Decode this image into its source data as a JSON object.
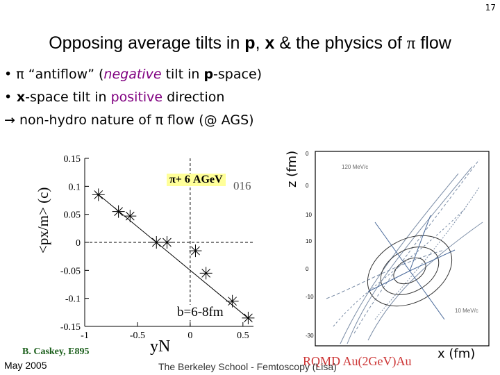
{
  "page_number": "17",
  "title": {
    "part1": "Opposing average tilts in ",
    "p": "p",
    "part2": ", ",
    "x": "x",
    "part3": " & the physics of ",
    "pi": "π",
    "part4": " flow"
  },
  "bullets": [
    {
      "marker": "•",
      "pre": " π “antiflow” (",
      "emph": "negative",
      "mid": " tilt in ",
      "bold": "p",
      "post": "-space)"
    },
    {
      "marker": "•",
      "bold": " x",
      "mid": "-space tilt in ",
      "emph": "positive",
      "post": " direction"
    },
    {
      "arrow": "→",
      "text": " non-hydro nature of π flow (@ AGS)"
    }
  ],
  "plot_left": {
    "ylabel": "<px/m> (c)",
    "xlabel": "yN",
    "tag": "π+ 6 AGeV",
    "tag_tail": "016",
    "annotation": "b=6-8fm",
    "ytick_labels": [
      "0.15",
      "0.1",
      "0.05",
      "0",
      "-0.05",
      "-0.1",
      "-0.15"
    ],
    "xtick_labels": [
      "-1",
      "-0.5",
      "0",
      "0.5"
    ]
  },
  "plot_right": {
    "zlabel": "z (fm)",
    "xlabel": "x (fm)",
    "momentum_label_1": "120 MeV/c",
    "momentum_label_2": "10 MeV/c"
  },
  "footer": {
    "date": "May 2005",
    "center": "The Berkeley School - Femtoscopy (Lisa)",
    "credit_left": "B. Caskey, E895",
    "credit_right": "RQMD Au(2GeV)Au"
  },
  "chart_data": {
    "type": "scatter",
    "title": "",
    "xlabel": "yN",
    "ylabel": "<px/m> (c)",
    "xlim": [
      -1,
      0.6
    ],
    "ylim": [
      -0.15,
      0.15
    ],
    "x": [
      -0.87,
      -0.68,
      -0.57,
      -0.32,
      -0.22,
      0.05,
      0.15,
      0.4,
      0.55
    ],
    "y": [
      0.085,
      0.055,
      0.047,
      0.0,
      0.0,
      -0.015,
      -0.055,
      -0.105,
      -0.135
    ],
    "grid": false,
    "reference_lines": {
      "x": 0,
      "y": 0
    }
  }
}
